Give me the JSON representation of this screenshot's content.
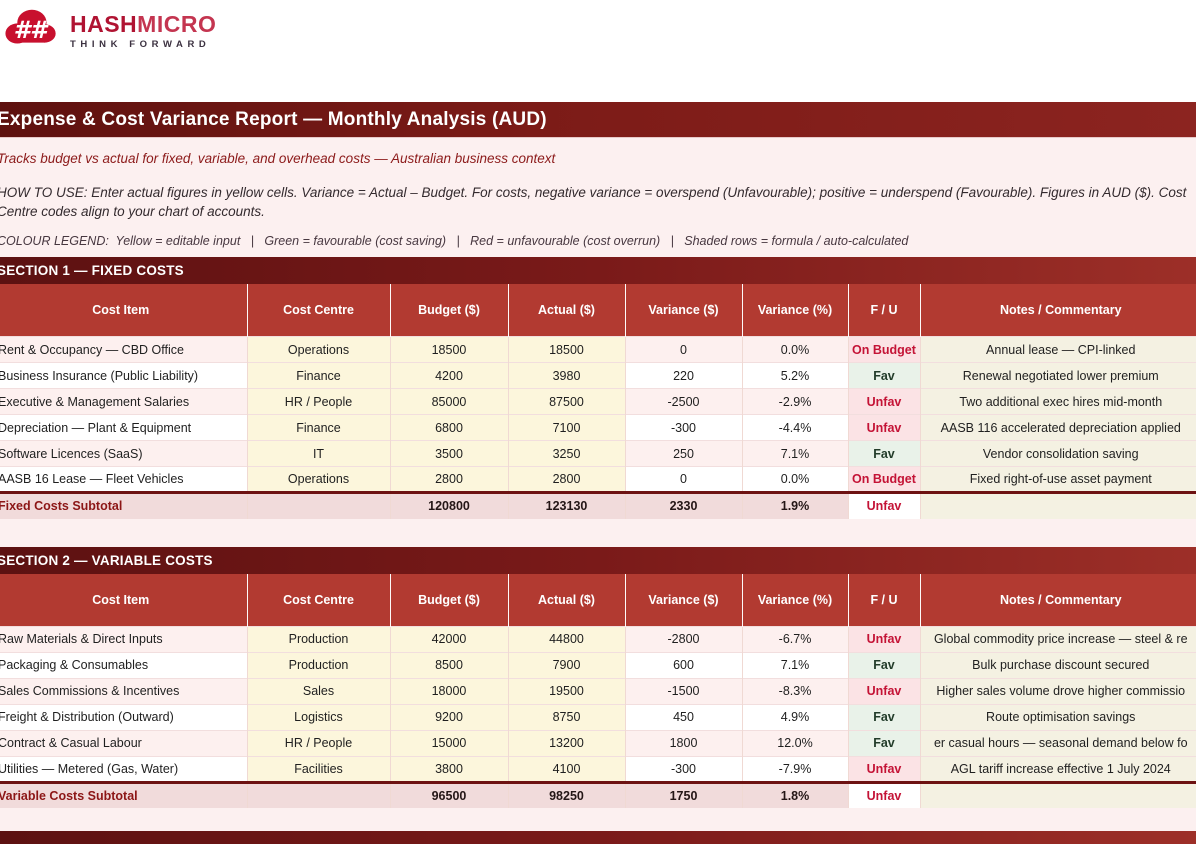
{
  "logo": {
    "brand_bold": "HASH",
    "brand_light": "MICRO",
    "tagline": "THINK FORWARD"
  },
  "report": {
    "title": "Expense & Cost Variance Report — Monthly Analysis (AUD)",
    "subtitle": "Tracks budget vs actual for fixed, variable, and overhead costs — Australian business context",
    "how_to_use": "HOW TO USE: Enter actual figures in yellow cells. Variance = Actual – Budget. For costs, negative variance = overspend (Unfavourable); positive = underspend (Favourable). Figures in AUD ($). Cost Centre codes align to your chart of accounts.",
    "colour_legend": "COLOUR LEGEND:  Yellow = editable input   |   Green = favourable (cost saving)   |   Red = unfavourable (cost overrun)   |   Shaded rows = formula / auto-calculated"
  },
  "colors": {
    "page_pink": "#fcf0f0",
    "maroon_dark": "#5e110f",
    "brick": "#b23a31",
    "brand_red": "#b01332",
    "brand_red_light": "#c43550",
    "subtitle_red": "#8c1a1a",
    "yellow_cell": "#fcf6dc",
    "note_cell": "#f4f1e2",
    "fav_bg": "#e9f2e9",
    "fav_text": "#223c2a",
    "unfav_bg": "#fbe3e5",
    "unfav_text": "#c41336",
    "subtotal_pink": "#f1dbdb"
  },
  "table_headers": [
    "Cost Item",
    "Cost Centre",
    "Budget ($)",
    "Actual ($)",
    "Variance ($)",
    "Variance (%)",
    "F / U",
    "Notes / Commentary"
  ],
  "sections": [
    {
      "title": "SECTION 1 — FIXED COSTS",
      "rows": [
        {
          "item": "Rent & Occupancy — CBD Office",
          "centre": "Operations",
          "budget": "18500",
          "actual": "18500",
          "variance_amt": "0",
          "variance_pct": "0.0%",
          "fu": "On Budget",
          "note": "Annual lease — CPI-linked"
        },
        {
          "item": "Business Insurance (Public Liability)",
          "centre": "Finance",
          "budget": "4200",
          "actual": "3980",
          "variance_amt": "220",
          "variance_pct": "5.2%",
          "fu": "Fav",
          "note": "Renewal negotiated lower premium"
        },
        {
          "item": "Executive & Management Salaries",
          "centre": "HR / People",
          "budget": "85000",
          "actual": "87500",
          "variance_amt": "-2500",
          "variance_pct": "-2.9%",
          "fu": "Unfav",
          "note": "Two additional exec hires mid-month"
        },
        {
          "item": "Depreciation — Plant & Equipment",
          "centre": "Finance",
          "budget": "6800",
          "actual": "7100",
          "variance_amt": "-300",
          "variance_pct": "-4.4%",
          "fu": "Unfav",
          "note": "AASB 116 accelerated depreciation applied"
        },
        {
          "item": "Software Licences (SaaS)",
          "centre": "IT",
          "budget": "3500",
          "actual": "3250",
          "variance_amt": "250",
          "variance_pct": "7.1%",
          "fu": "Fav",
          "note": "Vendor consolidation saving"
        },
        {
          "item": "AASB 16 Lease — Fleet Vehicles",
          "centre": "Operations",
          "budget": "2800",
          "actual": "2800",
          "variance_amt": "0",
          "variance_pct": "0.0%",
          "fu": "On Budget",
          "note": "Fixed right-of-use asset payment"
        }
      ],
      "subtotal": {
        "label": "Fixed Costs Subtotal",
        "budget": "120800",
        "actual": "123130",
        "variance_amt": "2330",
        "variance_pct": "1.9%",
        "fu": "Unfav"
      }
    },
    {
      "title": "SECTION 2 — VARIABLE COSTS",
      "rows": [
        {
          "item": "Raw Materials & Direct Inputs",
          "centre": "Production",
          "budget": "42000",
          "actual": "44800",
          "variance_amt": "-2800",
          "variance_pct": "-6.7%",
          "fu": "Unfav",
          "note": "Global commodity price increase — steel & re"
        },
        {
          "item": "Packaging & Consumables",
          "centre": "Production",
          "budget": "8500",
          "actual": "7900",
          "variance_amt": "600",
          "variance_pct": "7.1%",
          "fu": "Fav",
          "note": "Bulk purchase discount secured"
        },
        {
          "item": "Sales Commissions & Incentives",
          "centre": "Sales",
          "budget": "18000",
          "actual": "19500",
          "variance_amt": "-1500",
          "variance_pct": "-8.3%",
          "fu": "Unfav",
          "note": "Higher sales volume drove higher commissio"
        },
        {
          "item": "Freight & Distribution (Outward)",
          "centre": "Logistics",
          "budget": "9200",
          "actual": "8750",
          "variance_amt": "450",
          "variance_pct": "4.9%",
          "fu": "Fav",
          "note": "Route optimisation savings"
        },
        {
          "item": "Contract & Casual Labour",
          "centre": "HR / People",
          "budget": "15000",
          "actual": "13200",
          "variance_amt": "1800",
          "variance_pct": "12.0%",
          "fu": "Fav",
          "note": "er casual hours — seasonal demand below fo"
        },
        {
          "item": "Utilities — Metered (Gas, Water)",
          "centre": "Facilities",
          "budget": "3800",
          "actual": "4100",
          "variance_amt": "-300",
          "variance_pct": "-7.9%",
          "fu": "Unfav",
          "note": "AGL tariff increase effective 1 July 2024"
        }
      ],
      "subtotal": {
        "label": "Variable Costs Subtotal",
        "budget": "96500",
        "actual": "98250",
        "variance_amt": "1750",
        "variance_pct": "1.8%",
        "fu": "Unfav"
      }
    }
  ]
}
